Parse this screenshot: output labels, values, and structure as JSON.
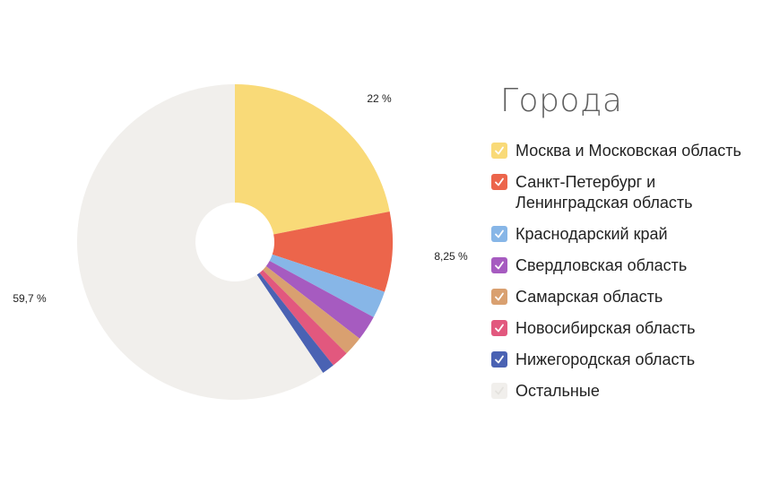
{
  "chart_data": {
    "type": "pie",
    "donut": true,
    "legend_title": "Города",
    "legend_position": "right",
    "slices": [
      {
        "name": "Москва и Московская область",
        "value": 22,
        "label": "22 %",
        "color": "#F9DA78",
        "checked": true
      },
      {
        "name": "Санкт-Петербург и Ленинградская область",
        "value": 8.25,
        "label": "8,25 %",
        "color": "#EC654B",
        "checked": true
      },
      {
        "name": "Краснодарский край",
        "value": 2.8,
        "label": "",
        "color": "#87B6E7",
        "checked": true
      },
      {
        "name": "Свердловская область",
        "value": 2.6,
        "label": "",
        "color": "#A65BC0",
        "checked": true
      },
      {
        "name": "Самарская область",
        "value": 2.0,
        "label": "",
        "color": "#D9A070",
        "checked": true
      },
      {
        "name": "Новосибирская область",
        "value": 1.8,
        "label": "",
        "color": "#E2587E",
        "checked": true
      },
      {
        "name": "Нижегородская область",
        "value": 1.3,
        "label": "",
        "color": "#4A62B3",
        "checked": true
      },
      {
        "name": "Остальные",
        "value": 59.7,
        "label": "59,7 %",
        "color": "#F1EFEC",
        "checked": true
      }
    ]
  }
}
